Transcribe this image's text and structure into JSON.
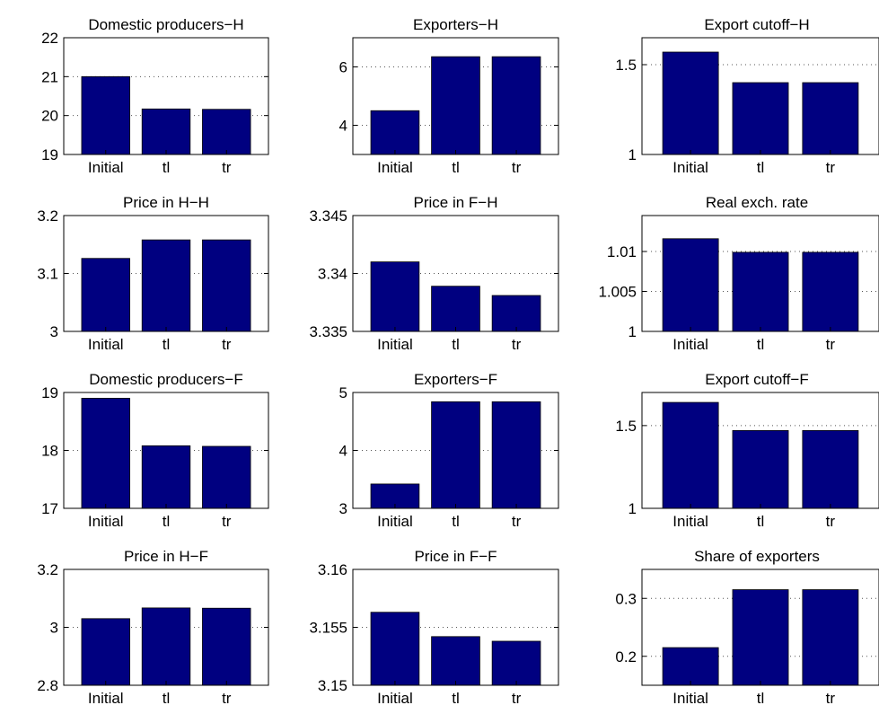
{
  "chart_data": [
    {
      "type": "bar",
      "title": "Domestic producers−H",
      "categories": [
        "Initial",
        "tl",
        "tr"
      ],
      "values": [
        21.0,
        20.17,
        20.16
      ],
      "ylim": [
        19,
        22
      ],
      "yticks": [
        19,
        20,
        21,
        22
      ],
      "ytick_labels": [
        "19",
        "20",
        "21",
        "22"
      ],
      "grid": "y",
      "bar_color": "#000080"
    },
    {
      "type": "bar",
      "title": "Exporters−H",
      "categories": [
        "Initial",
        "tl",
        "tr"
      ],
      "values": [
        4.5,
        6.35,
        6.35
      ],
      "ylim": [
        3,
        7
      ],
      "yticks": [
        4,
        6
      ],
      "ytick_labels": [
        "4",
        "6"
      ],
      "grid": "y",
      "bar_color": "#000080"
    },
    {
      "type": "bar",
      "title": "Export cutoff−H",
      "categories": [
        "Initial",
        "tl",
        "tr"
      ],
      "values": [
        1.57,
        1.4,
        1.4
      ],
      "ylim": [
        1,
        1.65
      ],
      "yticks": [
        1,
        1.5
      ],
      "ytick_labels": [
        "1",
        "1.5"
      ],
      "grid": "y",
      "bar_color": "#000080"
    },
    {
      "type": "bar",
      "title": "Price in H−H",
      "categories": [
        "Initial",
        "tl",
        "tr"
      ],
      "values": [
        3.126,
        3.158,
        3.158
      ],
      "ylim": [
        3,
        3.2
      ],
      "yticks": [
        3,
        3.1,
        3.2
      ],
      "ytick_labels": [
        "3",
        "3.1",
        "3.2"
      ],
      "grid": "y",
      "bar_color": "#000080"
    },
    {
      "type": "bar",
      "title": "Price in F−H",
      "categories": [
        "Initial",
        "tl",
        "tr"
      ],
      "values": [
        3.341,
        3.3389,
        3.3381
      ],
      "ylim": [
        3.335,
        3.345
      ],
      "yticks": [
        3.335,
        3.34,
        3.345
      ],
      "ytick_labels": [
        "3.335",
        "3.34",
        "3.345"
      ],
      "grid": "y",
      "bar_color": "#000080"
    },
    {
      "type": "bar",
      "title": "Real exch. rate",
      "categories": [
        "Initial",
        "tl",
        "tr"
      ],
      "values": [
        1.0116,
        1.0099,
        1.0099
      ],
      "ylim": [
        1,
        1.0145
      ],
      "yticks": [
        1,
        1.005,
        1.01
      ],
      "ytick_labels": [
        "1",
        "1.005",
        "1.01"
      ],
      "grid": "y",
      "bar_color": "#000080"
    },
    {
      "type": "bar",
      "title": "Domestic producers−F",
      "categories": [
        "Initial",
        "tl",
        "tr"
      ],
      "values": [
        18.9,
        18.08,
        18.07
      ],
      "ylim": [
        17,
        19
      ],
      "yticks": [
        17,
        18,
        19
      ],
      "ytick_labels": [
        "17",
        "18",
        "19"
      ],
      "grid": "y",
      "bar_color": "#000080"
    },
    {
      "type": "bar",
      "title": "Exporters−F",
      "categories": [
        "Initial",
        "tl",
        "tr"
      ],
      "values": [
        3.42,
        4.84,
        4.84
      ],
      "ylim": [
        3,
        5
      ],
      "yticks": [
        3,
        4,
        5
      ],
      "ytick_labels": [
        "3",
        "4",
        "5"
      ],
      "grid": "y",
      "bar_color": "#000080"
    },
    {
      "type": "bar",
      "title": "Export cutoff−F",
      "categories": [
        "Initial",
        "tl",
        "tr"
      ],
      "values": [
        1.64,
        1.47,
        1.47
      ],
      "ylim": [
        1,
        1.7
      ],
      "yticks": [
        1,
        1.5
      ],
      "ytick_labels": [
        "1",
        "1.5"
      ],
      "grid": "y",
      "bar_color": "#000080"
    },
    {
      "type": "bar",
      "title": "Price in H−F",
      "categories": [
        "Initial",
        "tl",
        "tr"
      ],
      "values": [
        3.03,
        3.067,
        3.066
      ],
      "ylim": [
        2.8,
        3.2
      ],
      "yticks": [
        2.8,
        3,
        3.2
      ],
      "ytick_labels": [
        "2.8",
        "3",
        "3.2"
      ],
      "grid": "y",
      "bar_color": "#000080"
    },
    {
      "type": "bar",
      "title": "Price in F−F",
      "categories": [
        "Initial",
        "tl",
        "tr"
      ],
      "values": [
        3.1563,
        3.1542,
        3.1538
      ],
      "ylim": [
        3.15,
        3.16
      ],
      "yticks": [
        3.15,
        3.155,
        3.16
      ],
      "ytick_labels": [
        "3.15",
        "3.155",
        "3.16"
      ],
      "grid": "y",
      "bar_color": "#000080"
    },
    {
      "type": "bar",
      "title": "Share of exporters",
      "categories": [
        "Initial",
        "tl",
        "tr"
      ],
      "values": [
        0.215,
        0.315,
        0.315
      ],
      "ylim": [
        0.15,
        0.35
      ],
      "yticks": [
        0.2,
        0.3
      ],
      "ytick_labels": [
        "0.2",
        "0.3"
      ],
      "grid": "y",
      "bar_color": "#000080"
    }
  ]
}
